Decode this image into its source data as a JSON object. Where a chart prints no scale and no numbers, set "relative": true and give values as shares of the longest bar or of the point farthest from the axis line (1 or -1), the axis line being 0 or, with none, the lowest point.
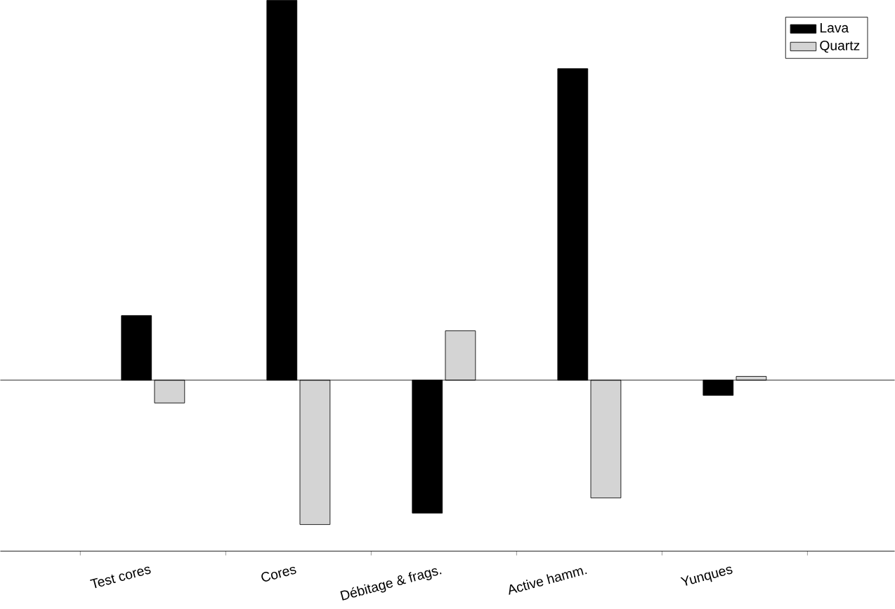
{
  "chart_data": {
    "type": "bar",
    "relative": true,
    "categories": [
      "Test cores",
      "Cores",
      "Débitage & frags.",
      "Active hamm.",
      "Yunques"
    ],
    "series": [
      {
        "name": "Lava",
        "color": "#000000",
        "values": [
          0.17,
          1,
          -0.35,
          0.82,
          -0.04
        ]
      },
      {
        "name": "Quartz",
        "color": "#d4d4d4",
        "values": [
          -0.06,
          -0.38,
          0.13,
          -0.31,
          0.01
        ]
      }
    ],
    "legend": "top right"
  }
}
